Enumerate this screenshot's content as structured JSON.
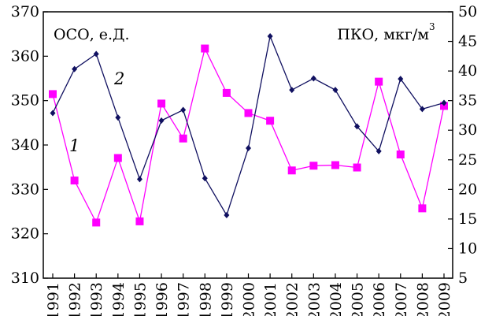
{
  "chart_data": {
    "type": "line",
    "x": [
      "1991",
      "1992",
      "1993",
      "1994",
      "1995",
      "1996",
      "1997",
      "1998",
      "1999",
      "2000",
      "2001",
      "2002",
      "2003",
      "2004",
      "2005",
      "2006",
      "2007",
      "2008",
      "2009"
    ],
    "left_axis": {
      "label": "ОСО, е.Д.",
      "ylim": [
        310,
        370
      ],
      "ticks": [
        "310",
        "320",
        "330",
        "340",
        "350",
        "360",
        "370"
      ]
    },
    "right_axis": {
      "label": "ПКО, мкг/м",
      "unit_superscript": "3",
      "ylim": [
        5,
        50
      ],
      "ticks": [
        "5",
        "10",
        "15",
        "20",
        "25",
        "30",
        "35",
        "40",
        "45",
        "50"
      ]
    },
    "series": [
      {
        "name": "1",
        "axis": "right",
        "color": "#ff00ff",
        "marker": "square",
        "values": [
          36.1,
          21.5,
          14.4,
          25.3,
          14.6,
          34.5,
          28.6,
          43.8,
          36.3,
          32.9,
          31.6,
          23.2,
          24.0,
          24.1,
          23.7,
          38.2,
          25.9,
          16.8,
          34.1
        ]
      },
      {
        "name": "2",
        "axis": "left",
        "color": "#101060",
        "marker": "diamond",
        "values": [
          347.2,
          357.1,
          360.5,
          346.2,
          332.3,
          345.5,
          347.9,
          332.5,
          324.2,
          339.3,
          364.5,
          352.4,
          355.0,
          352.4,
          344.2,
          338.6,
          354.9,
          348.1,
          349.5
        ]
      }
    ],
    "grid": false
  }
}
